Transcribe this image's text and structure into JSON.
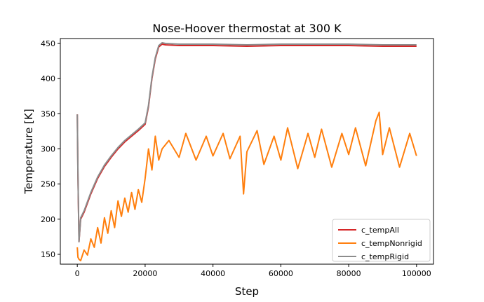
{
  "chart_data": {
    "type": "line",
    "title": "Nose-Hoover thermostat at 300 K",
    "xlabel": "Step",
    "ylabel": "Temperature [K]",
    "xlim": [
      -5000,
      105000
    ],
    "ylim": [
      136,
      457
    ],
    "xticks": [
      0,
      20000,
      40000,
      60000,
      80000,
      100000
    ],
    "xtick_labels": [
      "0",
      "20000",
      "40000",
      "60000",
      "80000",
      "100000"
    ],
    "yticks": [
      150,
      200,
      250,
      300,
      350,
      400,
      450
    ],
    "ytick_labels": [
      "150",
      "200",
      "250",
      "300",
      "350",
      "400",
      "450"
    ],
    "grid": false,
    "legend_position": "lower-right",
    "series": [
      {
        "name": "c_tempAll",
        "color": "#d62728",
        "x": [
          0,
          200,
          500,
          1000,
          2000,
          4000,
          6000,
          8000,
          10000,
          12000,
          14000,
          16000,
          18000,
          20000,
          21000,
          22000,
          23000,
          24000,
          25000,
          26000,
          30000,
          40000,
          50000,
          60000,
          70000,
          80000,
          90000,
          100000
        ],
        "y": [
          349,
          265,
          168,
          200,
          210,
          236,
          258,
          275,
          288,
          300,
          310,
          318,
          326,
          335,
          360,
          400,
          428,
          445,
          449,
          448,
          447,
          447,
          446,
          447,
          447,
          447,
          446,
          446
        ]
      },
      {
        "name": "c_tempNonrigid",
        "color": "#ff7f0e",
        "x": [
          0,
          200,
          500,
          1000,
          2000,
          3000,
          4000,
          5000,
          6000,
          7000,
          8000,
          9000,
          10000,
          11000,
          12000,
          13000,
          14000,
          15000,
          16000,
          17000,
          18000,
          19000,
          20000,
          21000,
          22000,
          23000,
          24000,
          25000,
          27000,
          30000,
          32000,
          35000,
          38000,
          40000,
          43000,
          45000,
          48000,
          49000,
          50000,
          53000,
          55000,
          58000,
          60000,
          62000,
          65000,
          68000,
          70000,
          72000,
          75000,
          78000,
          80000,
          82000,
          85000,
          88000,
          89000,
          90000,
          92000,
          95000,
          98000,
          100000
        ],
        "y": [
          160,
          146,
          143,
          141,
          156,
          149,
          172,
          160,
          188,
          166,
          202,
          180,
          212,
          188,
          226,
          204,
          230,
          210,
          238,
          214,
          242,
          224,
          258,
          300,
          270,
          318,
          284,
          300,
          312,
          288,
          322,
          284,
          318,
          290,
          322,
          286,
          318,
          236,
          296,
          326,
          278,
          318,
          284,
          330,
          272,
          322,
          288,
          328,
          274,
          322,
          292,
          330,
          276,
          340,
          352,
          292,
          330,
          274,
          322,
          290
        ]
      },
      {
        "name": "c_tempRigid",
        "color": "#8c8c8c",
        "x": [
          0,
          200,
          500,
          1000,
          2000,
          4000,
          6000,
          8000,
          10000,
          12000,
          14000,
          16000,
          18000,
          20000,
          21000,
          22000,
          23000,
          24000,
          25000,
          26000,
          30000,
          40000,
          50000,
          60000,
          70000,
          80000,
          90000,
          100000
        ],
        "y": [
          349,
          265,
          168,
          202,
          212,
          238,
          260,
          277,
          290,
          302,
          312,
          320,
          328,
          337,
          362,
          402,
          430,
          447,
          451,
          450,
          449,
          449,
          448,
          449,
          449,
          449,
          448,
          448
        ]
      }
    ]
  }
}
